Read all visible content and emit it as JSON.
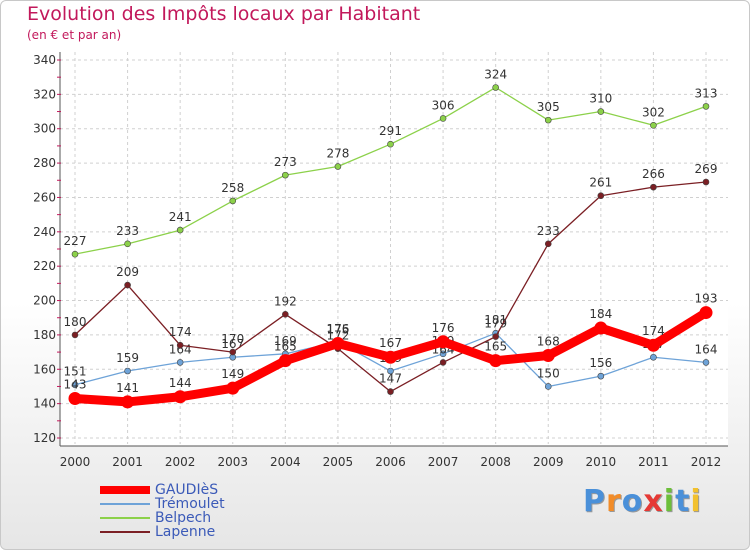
{
  "header": {
    "title": "Evolution des Impôts locaux par Habitant",
    "subtitle": "(en € et par an)"
  },
  "brand": {
    "text": "Proxiti",
    "letter_colors": [
      "#4a90d9",
      "#f28c28",
      "#4a90d9",
      "#e53935",
      "#6cbf3a",
      "#4a90d9",
      "#f2c12e"
    ]
  },
  "chart_data": {
    "type": "line",
    "title": "Evolution des Impôts locaux par Habitant",
    "subtitle": "(en € et par an)",
    "xlabel": "",
    "ylabel": "",
    "x": [
      "2000",
      "2001",
      "2002",
      "2003",
      "2004",
      "2005",
      "2006",
      "2007",
      "2008",
      "2009",
      "2010",
      "2011",
      "2012"
    ],
    "ylim": [
      120,
      340
    ],
    "yticks": [
      120,
      140,
      160,
      180,
      200,
      220,
      240,
      260,
      280,
      300,
      320,
      340
    ],
    "grid": "horizontal dashed",
    "legend_position": "bottom-left",
    "series": [
      {
        "name": "GAUDIèS",
        "color": "#ff0000",
        "emphasis": "thick",
        "values": [
          143,
          141,
          144,
          149,
          165,
          175,
          167,
          176,
          165,
          168,
          184,
          174,
          193
        ]
      },
      {
        "name": "Trémoulet",
        "color": "#6ea3d8",
        "emphasis": "normal",
        "values": [
          151,
          159,
          164,
          167,
          169,
          176,
          159,
          169,
          181,
          150,
          156,
          167,
          164
        ]
      },
      {
        "name": "Belpech",
        "color": "#8cd14a",
        "emphasis": "normal",
        "values": [
          227,
          233,
          241,
          258,
          273,
          278,
          291,
          306,
          324,
          305,
          310,
          302,
          313
        ]
      },
      {
        "name": "Lapenne",
        "color": "#7b1f24",
        "emphasis": "normal",
        "values": [
          180,
          209,
          174,
          170,
          192,
          172,
          147,
          164,
          179,
          233,
          261,
          266,
          269
        ]
      }
    ]
  }
}
